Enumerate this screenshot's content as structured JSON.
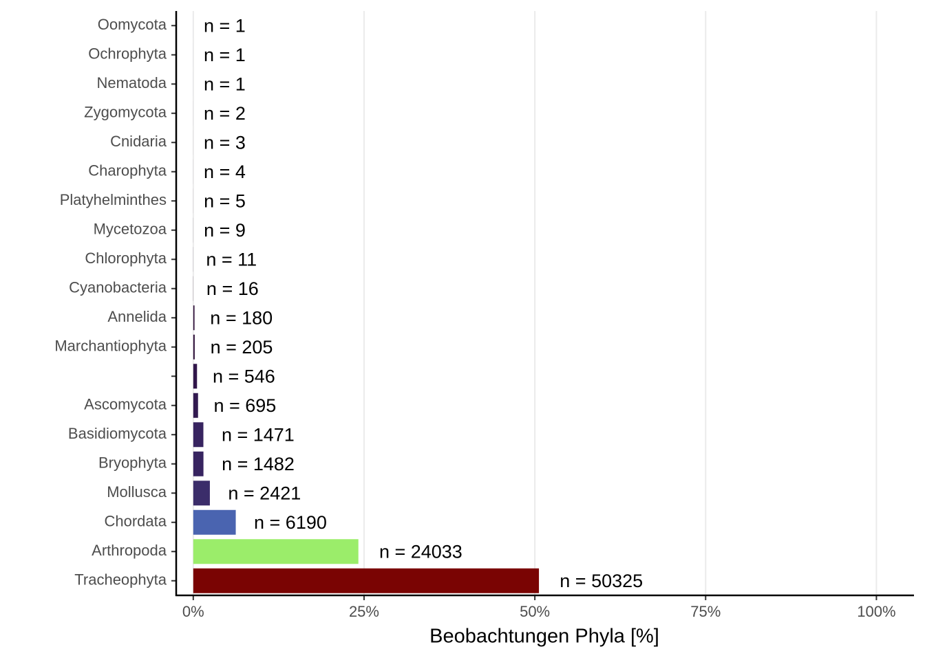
{
  "chart_data": {
    "type": "barh",
    "x_label": "Beobachtungen Phyla [%]",
    "categories": [
      "Oomycota",
      "Ochrophyta",
      "Nematoda",
      "Zygomycota",
      "Cnidaria",
      "Charophyta",
      "Platyhelminthes",
      "Mycetozoa",
      "Chlorophyta",
      "Cyanobacteria",
      "Annelida",
      "Marchantiophyta",
      null,
      "Ascomycota",
      "Basidiomycota",
      "Bryophyta",
      "Mollusca",
      "Chordata",
      "Arthropoda",
      "Tracheophyta"
    ],
    "values": [
      0.001,
      0.001,
      0.001,
      0.002,
      0.003,
      0.004,
      0.005,
      0.009,
      0.011,
      0.016,
      0.18,
      0.21,
      0.55,
      0.7,
      1.48,
      1.49,
      2.43,
      6.22,
      24.17,
      50.6
    ],
    "bar_labels": [
      "n = 1",
      "n = 1",
      "n = 1",
      "n = 2",
      "n = 3",
      "n = 4",
      "n = 5",
      "n = 9",
      "n = 11",
      "n = 16",
      "n = 180",
      "n = 205",
      "n = 546",
      "n = 695",
      "n = 1471",
      "n = 1482",
      "n = 2421",
      "n = 6190",
      "n = 24033",
      "n = 50325"
    ],
    "colors": [
      "#30123b",
      "#30123b",
      "#30123b",
      "#30123b",
      "#30123b",
      "#30123b",
      "#30123b",
      "#30123b",
      "#30123b",
      "#30123b",
      "#30123b",
      "#30123b",
      "#31164a",
      "#321a50",
      "#372460",
      "#372460",
      "#3b2d6a",
      "#4a64b0",
      "#9bed6a",
      "#7a0403"
    ],
    "xlim": [
      -2.5,
      105.5
    ],
    "xticks": [
      {
        "value": 0,
        "label": "0%"
      },
      {
        "value": 25,
        "label": "25%"
      },
      {
        "value": 50,
        "label": "50%"
      },
      {
        "value": 75,
        "label": "75%"
      },
      {
        "value": 100,
        "label": "100%"
      }
    ],
    "grid": true
  }
}
